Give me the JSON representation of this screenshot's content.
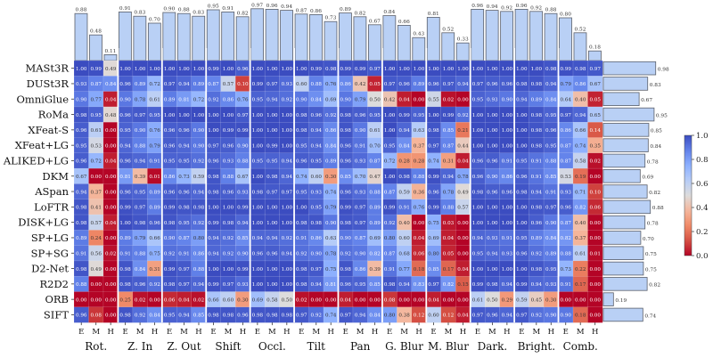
{
  "chart_data": {
    "type": "heatmap",
    "title": "",
    "methods": [
      "MASt3R",
      "DUSt3R",
      "OmniGlue",
      "RoMa",
      "XFeat-S",
      "XFeat+LG",
      "ALIKED+LG",
      "DKM",
      "ASpan",
      "LoFTR",
      "DISK+LG",
      "SP+LG",
      "SP+SG",
      "D2-Net",
      "R2D2",
      "ORB",
      "SIFT"
    ],
    "groups": [
      "Rot.",
      "Z. In",
      "Z. Out",
      "Shift",
      "Occl.",
      "Tilt",
      "Pan",
      "G. Blur",
      "M. Blur",
      "Dark.",
      "Bright.",
      "Comb."
    ],
    "levels": [
      "E",
      "M",
      "H"
    ],
    "values": [
      [
        1.0,
        0.99,
        0.49,
        1.0,
        1.0,
        1.0,
        1.0,
        1.0,
        1.0,
        0.99,
        1.0,
        0.96,
        1.0,
        1.0,
        1.0,
        1.0,
        0.99,
        0.98,
        0.99,
        0.99,
        0.97,
        1.0,
        1.0,
        1.0,
        1.0,
        1.0,
        1.0,
        1.0,
        1.0,
        1.0,
        1.0,
        1.0,
        0.98,
        0.99,
        0.98,
        0.97
      ],
      [
        0.93,
        0.87,
        0.84,
        0.96,
        0.89,
        0.72,
        0.97,
        0.94,
        0.89,
        0.87,
        0.57,
        0.1,
        0.99,
        0.97,
        0.93,
        0.6,
        0.88,
        0.76,
        0.86,
        0.42,
        0.05,
        0.97,
        0.96,
        0.89,
        0.96,
        0.97,
        0.94,
        0.97,
        0.96,
        0.96,
        0.98,
        0.98,
        0.94,
        0.79,
        0.86,
        0.67
      ],
      [
        0.9,
        0.77,
        0.04,
        0.9,
        0.78,
        0.61,
        0.89,
        0.81,
        0.72,
        0.92,
        0.86,
        0.76,
        0.95,
        0.94,
        0.92,
        0.9,
        0.84,
        0.69,
        0.9,
        0.79,
        0.5,
        0.42,
        0.04,
        0.0,
        0.55,
        0.02,
        0.0,
        0.95,
        0.93,
        0.9,
        0.94,
        0.89,
        0.84,
        0.64,
        0.4,
        0.05
      ],
      [
        0.98,
        0.95,
        0.48,
        0.96,
        0.97,
        0.95,
        1.0,
        1.0,
        1.0,
        1.0,
        1.0,
        0.97,
        1.0,
        1.0,
        1.0,
        0.98,
        0.96,
        0.92,
        0.98,
        0.96,
        0.95,
        1.0,
        0.99,
        0.95,
        1.0,
        0.99,
        0.92,
        1.0,
        1.0,
        1.0,
        1.0,
        0.98,
        0.95,
        0.97,
        0.94,
        0.65
      ],
      [
        0.96,
        0.61,
        0.0,
        0.95,
        0.9,
        0.76,
        0.96,
        0.96,
        0.9,
        1.0,
        0.99,
        0.99,
        1.0,
        1.0,
        1.0,
        0.98,
        0.94,
        0.86,
        0.98,
        0.9,
        0.61,
        1.0,
        0.94,
        0.63,
        0.98,
        0.85,
        0.21,
        1.0,
        1.0,
        1.0,
        1.0,
        0.98,
        0.96,
        0.86,
        0.66,
        0.14
      ],
      [
        0.95,
        0.53,
        0.0,
        0.94,
        0.88,
        0.79,
        0.96,
        0.94,
        0.9,
        0.97,
        0.96,
        0.9,
        1.0,
        0.99,
        1.0,
        0.95,
        0.94,
        0.84,
        0.96,
        0.91,
        0.7,
        0.95,
        0.84,
        0.37,
        0.97,
        0.87,
        0.44,
        1.0,
        1.0,
        1.0,
        1.0,
        0.98,
        0.95,
        0.87,
        0.74,
        0.35
      ],
      [
        0.96,
        0.72,
        0.04,
        0.96,
        0.94,
        0.91,
        0.95,
        0.95,
        0.92,
        0.96,
        0.93,
        0.88,
        0.95,
        0.95,
        0.94,
        0.96,
        0.95,
        0.89,
        0.96,
        0.93,
        0.87,
        0.72,
        0.28,
        0.28,
        0.74,
        0.31,
        0.04,
        0.96,
        0.96,
        0.91,
        0.95,
        0.91,
        0.88,
        0.87,
        0.58,
        0.02
      ],
      [
        0.67,
        0.0,
        0.0,
        0.81,
        0.39,
        0.01,
        0.86,
        0.73,
        0.59,
        0.98,
        0.88,
        0.67,
        1.0,
        0.98,
        0.94,
        0.74,
        0.6,
        0.3,
        0.85,
        0.7,
        0.47,
        1.0,
        0.98,
        0.88,
        0.99,
        0.94,
        0.78,
        0.96,
        0.9,
        0.86,
        0.96,
        0.91,
        0.85,
        0.53,
        0.19,
        0.0
      ],
      [
        0.94,
        0.37,
        0.0,
        0.96,
        0.95,
        0.89,
        0.96,
        0.96,
        0.94,
        0.98,
        0.96,
        0.93,
        0.98,
        0.97,
        0.97,
        0.95,
        0.93,
        0.74,
        0.96,
        0.93,
        0.88,
        0.87,
        0.59,
        0.36,
        0.96,
        0.78,
        0.49,
        0.98,
        0.96,
        0.96,
        0.98,
        0.94,
        0.91,
        0.93,
        0.71,
        0.1
      ],
      [
        0.98,
        0.41,
        0.0,
        0.99,
        0.97,
        0.89,
        0.99,
        0.98,
        0.98,
        1.0,
        1.0,
        0.99,
        1.0,
        1.0,
        1.0,
        1.0,
        0.95,
        0.79,
        0.99,
        0.97,
        0.89,
        0.99,
        0.91,
        0.76,
        0.99,
        0.88,
        0.57,
        1.0,
        1.0,
        1.0,
        1.0,
        0.98,
        0.97,
        0.96,
        0.82,
        0.06
      ],
      [
        0.98,
        0.57,
        0.04,
        1.0,
        0.98,
        0.96,
        0.98,
        0.95,
        0.92,
        0.99,
        0.98,
        0.94,
        1.0,
        1.0,
        1.0,
        0.98,
        0.98,
        0.9,
        0.98,
        0.97,
        0.89,
        0.92,
        0.4,
        0.0,
        0.75,
        0.03,
        0.0,
        1.0,
        1.0,
        1.0,
        1.0,
        0.96,
        0.9,
        0.87,
        0.4,
        0.0
      ],
      [
        0.89,
        0.24,
        0.0,
        0.89,
        0.79,
        0.66,
        0.9,
        0.87,
        0.8,
        0.94,
        0.92,
        0.85,
        0.94,
        0.94,
        0.92,
        0.91,
        0.86,
        0.63,
        0.9,
        0.87,
        0.69,
        0.8,
        0.6,
        0.04,
        0.69,
        0.04,
        0.0,
        0.94,
        0.93,
        0.91,
        0.95,
        0.89,
        0.84,
        0.82,
        0.37,
        0.0
      ],
      [
        0.91,
        0.56,
        0.02,
        0.91,
        0.88,
        0.75,
        0.92,
        0.91,
        0.86,
        0.94,
        0.92,
        0.9,
        0.96,
        0.96,
        0.94,
        0.92,
        0.9,
        0.78,
        0.92,
        0.9,
        0.82,
        0.87,
        0.68,
        0.06,
        0.8,
        0.05,
        0.0,
        0.95,
        0.94,
        0.93,
        0.96,
        0.92,
        0.89,
        0.88,
        0.61,
        0.01
      ],
      [
        0.98,
        0.49,
        0.0,
        0.98,
        0.84,
        0.31,
        0.99,
        0.97,
        0.88,
        1.0,
        1.0,
        0.99,
        1.0,
        1.0,
        1.0,
        0.98,
        0.97,
        0.75,
        0.98,
        0.86,
        0.39,
        0.91,
        0.77,
        0.18,
        0.85,
        0.17,
        0.04,
        1.0,
        1.0,
        1.0,
        1.0,
        0.98,
        0.95,
        0.73,
        0.22,
        0.0
      ],
      [
        0.88,
        0.0,
        0.0,
        0.98,
        0.96,
        0.92,
        0.98,
        0.97,
        0.94,
        0.99,
        0.97,
        0.93,
        1.0,
        1.0,
        1.0,
        0.98,
        0.94,
        0.81,
        0.96,
        0.95,
        0.85,
        0.98,
        0.94,
        0.83,
        0.97,
        0.82,
        0.15,
        0.99,
        0.98,
        0.94,
        0.99,
        0.94,
        0.93,
        0.91,
        0.17,
        0.0
      ],
      [
        0.0,
        0.0,
        0.0,
        0.25,
        0.02,
        0.0,
        0.06,
        0.04,
        0.02,
        0.66,
        0.6,
        0.3,
        0.69,
        0.58,
        0.5,
        0.02,
        0.0,
        0.0,
        0.04,
        0.0,
        0.0,
        0.08,
        0.0,
        0.0,
        0.04,
        0.0,
        0.0,
        0.61,
        0.5,
        0.29,
        0.59,
        0.45,
        0.3,
        0.0,
        0.0,
        0.0
      ],
      [
        0.96,
        0.08,
        0.0,
        0.98,
        0.92,
        0.84,
        0.95,
        0.94,
        0.85,
        0.98,
        0.98,
        0.96,
        0.98,
        0.98,
        0.98,
        0.97,
        0.92,
        0.74,
        0.97,
        0.94,
        0.84,
        0.8,
        0.38,
        0.12,
        0.6,
        0.12,
        0.04,
        0.97,
        0.96,
        0.94,
        0.97,
        0.92,
        0.9,
        0.9,
        0.18,
        0.0
      ]
    ],
    "column_means": [
      0.88,
      0.48,
      0.11,
      0.91,
      0.83,
      0.7,
      0.9,
      0.88,
      0.83,
      0.95,
      0.91,
      0.82,
      0.97,
      0.96,
      0.94,
      0.87,
      0.86,
      0.73,
      0.89,
      0.82,
      0.67,
      0.84,
      0.66,
      0.43,
      0.81,
      0.52,
      0.33,
      0.96,
      0.94,
      0.92,
      0.96,
      0.92,
      0.88,
      0.8,
      0.52,
      0.18
    ],
    "row_means": [
      0.98,
      0.83,
      0.67,
      0.95,
      0.85,
      0.84,
      0.78,
      0.69,
      0.82,
      0.88,
      0.78,
      0.7,
      0.75,
      0.75,
      0.82,
      0.19,
      0.74
    ],
    "colorbar": {
      "ticks": [
        0.0,
        0.2,
        0.4,
        0.6,
        0.8,
        1.0
      ],
      "tick_labels": [
        "0.0",
        "0.2",
        "0.4",
        "0.6",
        "0.8",
        "1.0"
      ],
      "range": [
        0.0,
        1.0
      ],
      "colormap": "coolwarm_r"
    },
    "colors": {
      "bar_fill": "#b9d0f5",
      "bar_stroke": "#5a5f6a",
      "low": "#b40426",
      "mid": "#dddcdc",
      "high": "#3b4cc0"
    }
  }
}
